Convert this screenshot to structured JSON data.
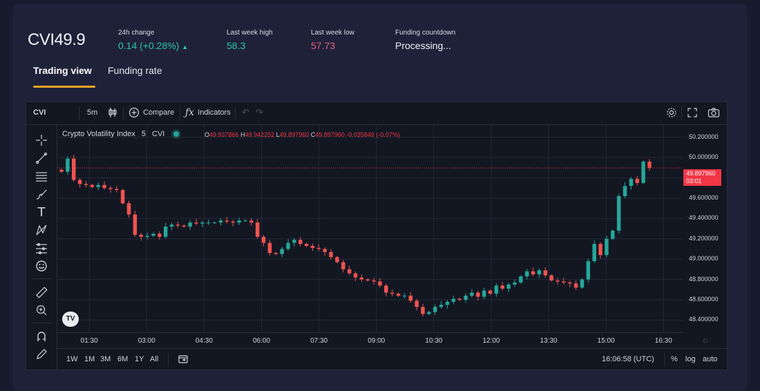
{
  "header": {
    "symbol": "CVI",
    "price": "49.9",
    "stats": [
      {
        "label": "24h change",
        "value": "0.14 (+0.28%)",
        "arrow": "▲",
        "tone": "green"
      },
      {
        "label": "Last week high",
        "value": "58.3",
        "tone": "green"
      },
      {
        "label": "Last week low",
        "value": "57.73",
        "tone": "pink"
      },
      {
        "label": "Funding countdown",
        "value": "Processing...",
        "tone": "white"
      }
    ]
  },
  "tabs": [
    {
      "label": "Trading view",
      "active": true
    },
    {
      "label": "Funding rate",
      "active": false
    }
  ],
  "chart_toolbar": {
    "symbol": "CVI",
    "interval": "5m",
    "compare": "Compare",
    "indicators": "Indicators"
  },
  "left_tools": [
    "crosshair-icon",
    "trend-line-icon",
    "horizontal-lines-icon",
    "brush-icon",
    "text-tool-icon",
    "pattern-icon",
    "measure-lines-icon",
    "emoji-icon",
    "ruler-icon",
    "zoom-in-icon",
    "magnet-icon",
    "pencil-lock-icon"
  ],
  "legend": {
    "name": "Crypto Volatility Index",
    "interval": "5",
    "ticker": "CVI",
    "o_label": "O",
    "o": "49.937866",
    "h_label": "H",
    "h": "49.942252",
    "l_label": "L",
    "l": "49.897960",
    "c_label": "C",
    "c": "49.897960",
    "change": "-0.035849 (-0.07%)"
  },
  "price_tag": {
    "price": "49.897960",
    "countdown": "03:01"
  },
  "bottom_bar": {
    "ranges": [
      "1W",
      "1M",
      "3M",
      "6M",
      "1Y",
      "All"
    ],
    "time": "16:06:58 (UTC)",
    "percent": "%",
    "log": "log",
    "auto": "auto"
  },
  "logo": "TV",
  "colors": {
    "up": "#26a69a",
    "down": "#ef5350",
    "accent": "#f5a623",
    "grid": "#242838"
  },
  "chart_data": {
    "type": "candlestick",
    "y_ticks": [
      "50.200000",
      "50.000000",
      "49.800000",
      "49.600000",
      "49.400000",
      "49.200000",
      "49.000000",
      "48.800000",
      "48.600000",
      "48.400000"
    ],
    "x_ticks": [
      "01:30",
      "03:00",
      "04:30",
      "06:00",
      "07:30",
      "09:00",
      "10:30",
      "12:00",
      "13:30",
      "15:00",
      "16:30"
    ],
    "ylim": [
      48.28,
      50.32
    ],
    "x_range": [
      "00:40",
      "17:00"
    ],
    "last_price": 49.89796,
    "series": [
      {
        "name": "CVI",
        "closes": [
          49.86,
          49.99,
          49.78,
          49.74,
          49.73,
          49.71,
          49.73,
          49.7,
          49.69,
          49.68,
          49.55,
          49.44,
          49.24,
          49.22,
          49.23,
          49.25,
          49.22,
          49.32,
          49.34,
          49.33,
          49.32,
          49.36,
          49.35,
          49.36,
          49.36,
          49.36,
          49.38,
          49.37,
          49.36,
          49.38,
          49.38,
          49.36,
          49.22,
          49.16,
          49.06,
          49.05,
          49.1,
          49.16,
          49.19,
          49.15,
          49.13,
          49.11,
          49.1,
          49.07,
          49.02,
          48.97,
          48.9,
          48.86,
          48.82,
          48.8,
          48.79,
          48.78,
          48.74,
          48.67,
          48.66,
          48.64,
          48.64,
          48.59,
          48.53,
          48.46,
          48.48,
          48.53,
          48.55,
          48.58,
          48.61,
          48.6,
          48.64,
          48.67,
          48.63,
          48.69,
          48.66,
          48.74,
          48.71,
          48.75,
          48.77,
          48.83,
          48.88,
          48.85,
          48.89,
          48.84,
          48.79,
          48.78,
          48.77,
          48.76,
          48.72,
          48.8,
          48.98,
          49.15,
          49.04,
          49.2,
          49.28,
          49.62,
          49.72,
          49.79,
          49.75,
          49.96,
          49.9
        ]
      }
    ]
  }
}
